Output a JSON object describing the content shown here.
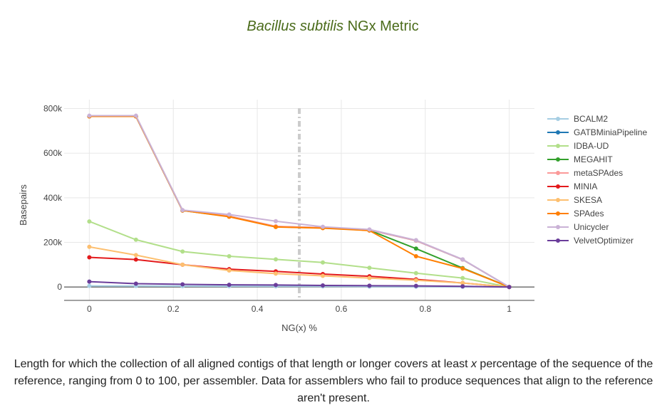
{
  "chart_data": {
    "type": "line",
    "title": {
      "italic": "Bacillus subtilis",
      "rest": " NGx Metric"
    },
    "xlabel": "NG(x) %",
    "ylabel": "Basepairs",
    "xlim": [
      -0.06,
      1.06
    ],
    "ylim": [
      -60000,
      840000
    ],
    "x_ticks": [
      0,
      0.2,
      0.4,
      0.6,
      0.8,
      1
    ],
    "x_tick_labels": [
      "0",
      "0.2",
      "0.4",
      "0.6",
      "0.8",
      "1"
    ],
    "y_ticks": [
      0,
      200000,
      400000,
      600000,
      800000
    ],
    "y_tick_labels": [
      "0",
      "200k",
      "400k",
      "600k",
      "800k"
    ],
    "grid": true,
    "legend_position": "right",
    "reference_line": {
      "x": 0.5,
      "style": "dashed",
      "color": "#cccccc"
    },
    "x": [
      0,
      0.111,
      0.222,
      0.333,
      0.444,
      0.556,
      0.667,
      0.778,
      0.889,
      1.0
    ],
    "series": [
      {
        "name": "BCALM2",
        "color": "#a6cee3",
        "values": [
          5000,
          4500,
          4000,
          3500,
          3000,
          2500,
          2000,
          1500,
          1000,
          0
        ]
      },
      {
        "name": "GATBMiniaPipeline",
        "color": "#1f78b4",
        "values": [
          765000,
          765000,
          343000,
          318000,
          271000,
          266000,
          256000,
          208000,
          123000,
          0
        ]
      },
      {
        "name": "IDBA-UD",
        "color": "#b2df8a",
        "values": [
          294000,
          212000,
          159000,
          138000,
          124000,
          110000,
          86000,
          62000,
          40000,
          0
        ]
      },
      {
        "name": "MEGAHIT",
        "color": "#33a02c",
        "values": [
          765000,
          765000,
          343000,
          316000,
          270000,
          265000,
          254000,
          172000,
          85000,
          0
        ]
      },
      {
        "name": "metaSPAdes",
        "color": "#fb9a99",
        "values": [
          765000,
          765000,
          343000,
          318000,
          272000,
          266000,
          256000,
          208000,
          123000,
          0
        ]
      },
      {
        "name": "MINIA",
        "color": "#e31a1c",
        "values": [
          133000,
          123000,
          100000,
          80000,
          70000,
          58000,
          48000,
          34000,
          18000,
          0
        ]
      },
      {
        "name": "SKESA",
        "color": "#fdbf6f",
        "values": [
          180000,
          143000,
          100000,
          74000,
          60000,
          50000,
          40000,
          30000,
          18000,
          0
        ]
      },
      {
        "name": "SPAdes",
        "color": "#ff7f00",
        "values": [
          765000,
          765000,
          343000,
          315000,
          269000,
          264000,
          253000,
          138000,
          83000,
          0
        ]
      },
      {
        "name": "Unicycler",
        "color": "#cab2d6",
        "values": [
          768000,
          768000,
          345000,
          325000,
          295000,
          270000,
          258000,
          210000,
          124000,
          0
        ]
      },
      {
        "name": "VelvetOptimizer",
        "color": "#6a3d9a",
        "values": [
          24000,
          15000,
          12000,
          10000,
          9000,
          7000,
          6000,
          5000,
          3000,
          0
        ]
      }
    ]
  },
  "caption": {
    "before": "Length for which the collection of all aligned contigs of that length or longer covers at least ",
    "var": "x",
    "after": " percentage of the sequence of the reference, ranging from 0 to 100, per assembler. Data for assemblers who fail to produce sequences that align to the reference aren't present."
  }
}
